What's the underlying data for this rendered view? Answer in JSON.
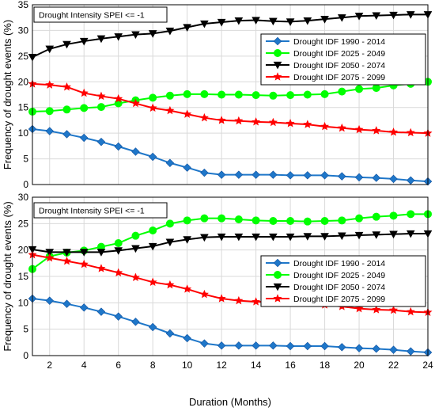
{
  "chart_data": [
    {
      "type": "line",
      "annotation": "Drought Intensity SPEI <= -1",
      "xlabel": "",
      "ylabel": "Frequency of drought events (%)",
      "xlim": [
        1,
        24
      ],
      "ylim": [
        0,
        35
      ],
      "yticks": [
        0,
        5,
        10,
        15,
        20,
        25,
        30,
        35
      ],
      "xticks": [],
      "grid": true,
      "legend_position": "upper-right-inside",
      "x": [
        1,
        2,
        3,
        4,
        5,
        6,
        7,
        8,
        9,
        10,
        11,
        12,
        13,
        14,
        15,
        16,
        17,
        18,
        19,
        20,
        21,
        22,
        23,
        24
      ],
      "series": [
        {
          "name": "Drought IDF 1990 - 2014",
          "color": "#1f77c9",
          "marker": "diamond",
          "values": [
            10.8,
            10.4,
            9.8,
            9.1,
            8.3,
            7.4,
            6.4,
            5.4,
            4.2,
            3.3,
            2.3,
            1.9,
            1.9,
            1.9,
            1.9,
            1.8,
            1.8,
            1.8,
            1.6,
            1.4,
            1.3,
            1.1,
            0.8,
            0.6
          ]
        },
        {
          "name": "Drought IDF 2025 - 2049",
          "color": "#00ff00",
          "marker": "circle",
          "values": [
            14.2,
            14.3,
            14.6,
            14.9,
            15.1,
            15.8,
            16.4,
            16.9,
            17.3,
            17.6,
            17.6,
            17.5,
            17.5,
            17.4,
            17.3,
            17.4,
            17.5,
            17.6,
            18.1,
            18.6,
            18.8,
            19.3,
            19.6,
            20.0
          ]
        },
        {
          "name": "Drought IDF 2050 - 2074",
          "color": "#000000",
          "marker": "triangle-down",
          "values": [
            24.8,
            26.4,
            27.3,
            27.9,
            28.4,
            28.8,
            29.2,
            29.4,
            29.9,
            30.6,
            31.3,
            31.6,
            31.9,
            32.0,
            31.8,
            31.7,
            31.9,
            32.2,
            32.5,
            32.8,
            32.9,
            33.0,
            33.1,
            33.1
          ]
        },
        {
          "name": "Drought IDF 2075 - 2099",
          "color": "#ff0000",
          "marker": "star",
          "values": [
            19.6,
            19.4,
            19.0,
            17.8,
            17.2,
            16.7,
            15.8,
            14.9,
            14.4,
            13.7,
            13.0,
            12.5,
            12.4,
            12.2,
            12.1,
            11.9,
            11.7,
            11.3,
            11.0,
            10.7,
            10.5,
            10.2,
            10.1,
            10.0
          ]
        }
      ]
    },
    {
      "type": "line",
      "annotation": "Drought Intensity SPEI <= -1",
      "xlabel": "Duration (Months)",
      "ylabel": "Frequency of drought events (%)",
      "xlim": [
        1,
        24
      ],
      "ylim": [
        0,
        30
      ],
      "yticks": [
        0,
        5,
        10,
        15,
        20,
        25,
        30
      ],
      "xticks": [
        2,
        4,
        6,
        8,
        10,
        12,
        14,
        16,
        18,
        20,
        22,
        24
      ],
      "grid": true,
      "legend_position": "right-inside",
      "x": [
        1,
        2,
        3,
        4,
        5,
        6,
        7,
        8,
        9,
        10,
        11,
        12,
        13,
        14,
        15,
        16,
        17,
        18,
        19,
        20,
        21,
        22,
        23,
        24
      ],
      "series": [
        {
          "name": "Drought IDF 1990 - 2014",
          "color": "#1f77c9",
          "marker": "diamond",
          "values": [
            10.8,
            10.4,
            9.8,
            9.1,
            8.3,
            7.4,
            6.4,
            5.4,
            4.2,
            3.3,
            2.3,
            1.9,
            1.9,
            1.9,
            1.9,
            1.8,
            1.8,
            1.8,
            1.6,
            1.4,
            1.3,
            1.1,
            0.8,
            0.6
          ]
        },
        {
          "name": "Drought IDF 2025 - 2049",
          "color": "#00ff00",
          "marker": "circle",
          "values": [
            16.4,
            18.8,
            19.5,
            19.9,
            20.6,
            21.3,
            22.7,
            23.7,
            25.0,
            25.6,
            26.0,
            26.0,
            25.8,
            25.6,
            25.5,
            25.5,
            25.4,
            25.5,
            25.6,
            26.0,
            26.3,
            26.5,
            26.8,
            26.8
          ]
        },
        {
          "name": "Drought IDF 2050 - 2074",
          "color": "#000000",
          "marker": "triangle-down",
          "values": [
            20.1,
            19.6,
            19.6,
            19.6,
            19.6,
            19.9,
            20.3,
            20.7,
            21.5,
            22.0,
            22.4,
            22.5,
            22.5,
            22.5,
            22.5,
            22.5,
            22.6,
            22.6,
            22.7,
            22.8,
            22.9,
            23.0,
            23.1,
            23.1
          ]
        },
        {
          "name": "Drought IDF 2075 - 2099",
          "color": "#ff0000",
          "marker": "star",
          "values": [
            19.1,
            18.5,
            17.9,
            17.3,
            16.5,
            15.7,
            14.8,
            13.9,
            13.4,
            12.6,
            11.6,
            10.8,
            10.4,
            10.2,
            10.2,
            10.1,
            9.9,
            9.6,
            9.3,
            8.9,
            8.7,
            8.6,
            8.3,
            8.2
          ]
        }
      ]
    }
  ]
}
